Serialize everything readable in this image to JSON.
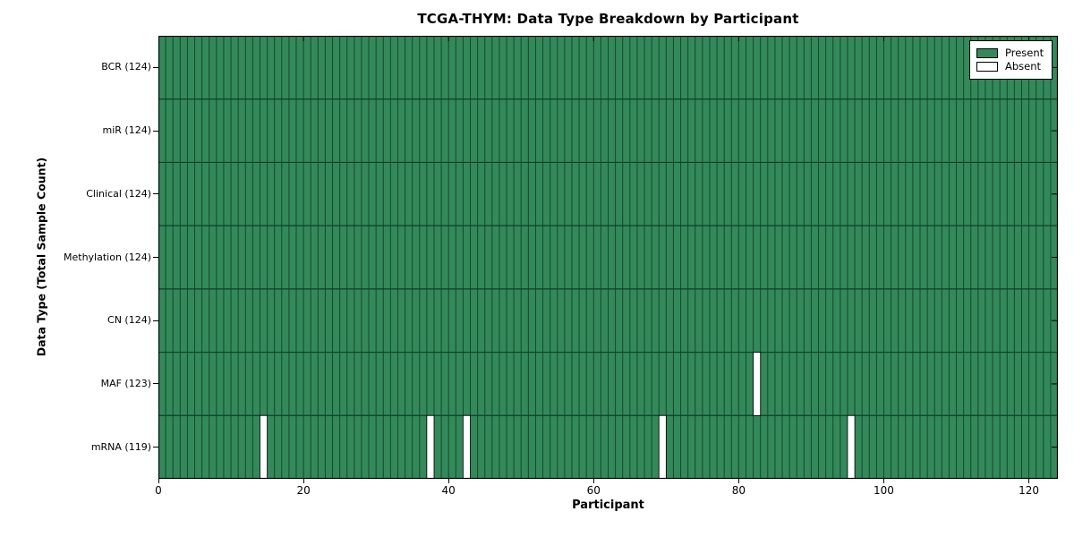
{
  "chart_data": {
    "type": "heatmap",
    "title": "TCGA-THYM: Data Type Breakdown by Participant",
    "xlabel": "Participant",
    "ylabel": "Data Type (Total Sample Count)",
    "n_participants": 124,
    "xlim": [
      0,
      124
    ],
    "xticks": [
      0,
      20,
      40,
      60,
      80,
      100,
      120
    ],
    "rows": [
      {
        "label": "BCR (124)",
        "total": 124,
        "absent_participants": []
      },
      {
        "label": "miR (124)",
        "total": 124,
        "absent_participants": []
      },
      {
        "label": "Clinical (124)",
        "total": 124,
        "absent_participants": []
      },
      {
        "label": "Methylation (124)",
        "total": 124,
        "absent_participants": []
      },
      {
        "label": "CN (124)",
        "total": 124,
        "absent_participants": []
      },
      {
        "label": "MAF (123)",
        "total": 123,
        "absent_participants": [
          82
        ]
      },
      {
        "label": "mRNA (119)",
        "total": 119,
        "absent_participants": [
          14,
          37,
          42,
          69,
          95
        ]
      }
    ],
    "legend": [
      {
        "label": "Present",
        "color": "#33895a"
      },
      {
        "label": "Absent",
        "color": "#ffffff"
      }
    ],
    "legend_position": "upper right",
    "colors": {
      "present": "#33895a",
      "absent": "#ffffff",
      "cell_edge_v": "#15492c",
      "row_edge_h": "#0e3f25",
      "frame": "#000000",
      "background": "#ffffff"
    },
    "grid": "cell-borders"
  }
}
